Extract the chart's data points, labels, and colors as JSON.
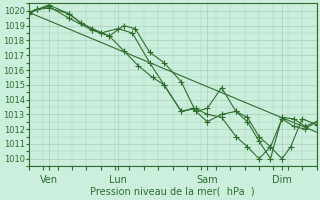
{
  "bg_color": "#cceedd",
  "grid_color": "#aaccbb",
  "line_color": "#2d6e2d",
  "xlabel": "Pression niveau de la mer(  hPa  )",
  "ylim": [
    1009.5,
    1020.5
  ],
  "xlim": [
    0,
    100
  ],
  "yticks": [
    1010,
    1011,
    1012,
    1013,
    1014,
    1015,
    1016,
    1017,
    1018,
    1019,
    1020
  ],
  "xtick_positions": [
    7,
    31,
    62,
    88
  ],
  "xtick_labels": [
    "Ven",
    "Lun",
    "Sam",
    "Dim"
  ],
  "line_straight": [
    [
      0,
      1019.9
    ],
    [
      100,
      1011.8
    ]
  ],
  "line_a": [
    [
      0,
      1019.9
    ],
    [
      3,
      1020.1
    ],
    [
      7,
      1020.2
    ],
    [
      14,
      1019.8
    ],
    [
      18,
      1019.2
    ],
    [
      22,
      1018.8
    ],
    [
      28,
      1018.3
    ],
    [
      33,
      1019.0
    ],
    [
      37,
      1018.8
    ],
    [
      42,
      1017.2
    ],
    [
      47,
      1016.5
    ],
    [
      53,
      1015.2
    ],
    [
      58,
      1013.2
    ],
    [
      62,
      1013.4
    ],
    [
      67,
      1014.8
    ],
    [
      72,
      1013.2
    ],
    [
      76,
      1012.5
    ],
    [
      80,
      1011.2
    ],
    [
      84,
      1010.0
    ],
    [
      88,
      1012.8
    ],
    [
      92,
      1012.7
    ],
    [
      96,
      1012.2
    ],
    [
      100,
      1012.5
    ]
  ],
  "line_b": [
    [
      0,
      1019.9
    ],
    [
      3,
      1020.1
    ],
    [
      7,
      1020.4
    ],
    [
      14,
      1019.8
    ],
    [
      18,
      1019.2
    ],
    [
      25,
      1018.5
    ],
    [
      31,
      1018.8
    ],
    [
      36,
      1018.5
    ],
    [
      42,
      1016.5
    ],
    [
      47,
      1015.0
    ],
    [
      53,
      1013.2
    ],
    [
      58,
      1013.4
    ],
    [
      62,
      1013.0
    ],
    [
      67,
      1012.8
    ],
    [
      72,
      1011.5
    ],
    [
      76,
      1010.8
    ],
    [
      80,
      1010.0
    ],
    [
      84,
      1010.8
    ],
    [
      88,
      1012.7
    ],
    [
      92,
      1012.2
    ],
    [
      96,
      1012.0
    ],
    [
      100,
      1012.5
    ]
  ],
  "line_c": [
    [
      0,
      1019.8
    ],
    [
      3,
      1020.1
    ],
    [
      7,
      1020.3
    ],
    [
      14,
      1019.5
    ],
    [
      22,
      1018.7
    ],
    [
      28,
      1018.3
    ],
    [
      33,
      1017.3
    ],
    [
      38,
      1016.3
    ],
    [
      43,
      1015.5
    ],
    [
      47,
      1015.0
    ],
    [
      53,
      1013.2
    ],
    [
      57,
      1013.4
    ],
    [
      62,
      1012.5
    ],
    [
      67,
      1013.0
    ],
    [
      72,
      1013.2
    ],
    [
      76,
      1012.8
    ],
    [
      80,
      1011.5
    ],
    [
      84,
      1010.8
    ],
    [
      88,
      1010.0
    ],
    [
      91,
      1010.8
    ],
    [
      95,
      1012.7
    ],
    [
      100,
      1012.3
    ]
  ]
}
